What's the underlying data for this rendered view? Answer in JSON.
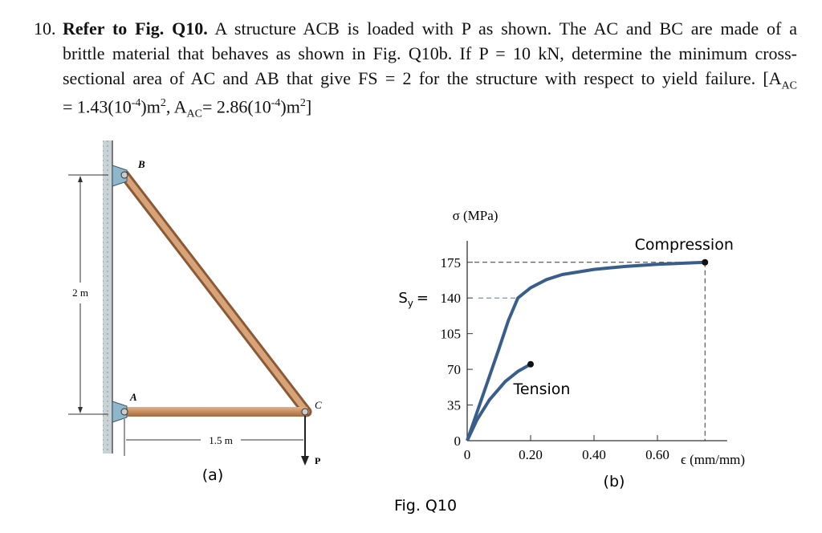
{
  "problem": {
    "lines": [
      [
        {
          "text": "10.",
          "style": "number"
        },
        {
          "text": "Refer to Fig. Q10.",
          "style": "bold"
        },
        {
          "text": " A structure ACB is loaded with P as shown. The AC and BC are made of a",
          "style": "normal"
        }
      ],
      [
        {
          "text": "brittle material that behaves as shown in Fig. Q10b. If P = 10 kN, determine the minimum cross-",
          "style": "normal"
        }
      ],
      [
        {
          "text": "sectional area of AC and AB that give FS = 2 for the structure with respect to yield failure. [A",
          "style": "normal"
        },
        {
          "text": "AC",
          "style": "sub"
        }
      ],
      [
        {
          "text": "= 1.43(10",
          "style": "normal"
        },
        {
          "text": "-4",
          "style": "sup"
        },
        {
          "text": ")m",
          "style": "normal"
        },
        {
          "text": "2",
          "style": "sup"
        },
        {
          "text": ", A",
          "style": "normal"
        },
        {
          "text": "AC",
          "style": "sub"
        },
        {
          "text": "= 2.86(10",
          "style": "normal"
        },
        {
          "text": "-4",
          "style": "sup"
        },
        {
          "text": ")m",
          "style": "normal"
        },
        {
          "text": "2",
          "style": "sup"
        },
        {
          "text": "]",
          "style": "normal"
        }
      ]
    ]
  },
  "figure_a": {
    "label_b": "B",
    "label_a": "A",
    "label_c": "C",
    "label_p": "P",
    "height_dim": "2 m",
    "width_dim": "1.5 m",
    "caption": "(a)"
  },
  "figure_b": {
    "type": "line",
    "y_label": "σ (MPa)",
    "x_label": "ϵ (mm/mm)",
    "sy_label": {
      "symbol": "S",
      "subscript": "y",
      "equals": "="
    },
    "caption": "(b)",
    "xlim": [
      0,
      0.82
    ],
    "ylim": [
      0,
      196
    ],
    "xticks": [
      0,
      {
        "value": 0.2,
        "label": "0.20"
      },
      {
        "value": 0.4,
        "label": "0.40"
      },
      {
        "value": 0.6,
        "label": "0.60"
      }
    ],
    "yticks": [
      0,
      35,
      70,
      105,
      140,
      175
    ],
    "series": [
      {
        "name": "Compression",
        "color": "#3a5e8c",
        "x": [
          0,
          0.05,
          0.1,
          0.13,
          0.16,
          0.2,
          0.25,
          0.3,
          0.4,
          0.5,
          0.6,
          0.75
        ],
        "values": [
          0,
          45,
          90,
          118,
          140,
          150,
          158,
          163,
          168,
          171,
          173,
          175
        ]
      },
      {
        "name": "Tension",
        "color": "#3a5e8c",
        "x": [
          0,
          0.03,
          0.07,
          0.12,
          0.16,
          0.2
        ],
        "values": [
          0,
          20,
          40,
          58,
          68,
          75
        ]
      }
    ]
  },
  "figure_caption": "Fig. Q10"
}
